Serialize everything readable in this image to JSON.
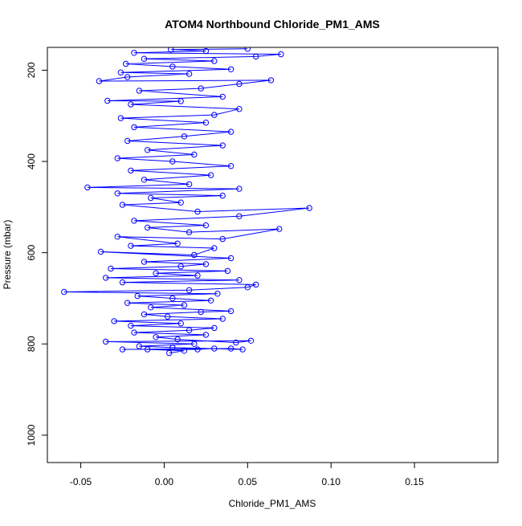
{
  "chart_data": {
    "type": "scatter",
    "title": "ATOM4 Northbound Chloride_PM1_AMS",
    "xlabel": "Chloride_PM1_AMS",
    "ylabel": "Pressure (mbar)",
    "xlim": [
      -0.07,
      0.2
    ],
    "ylim": [
      1060,
      150
    ],
    "y_reversed": true,
    "x_ticks": [
      -0.05,
      0.0,
      0.05,
      0.1,
      0.15
    ],
    "x_tick_labels": [
      "-0.05",
      "0.00",
      "0.05",
      "0.10",
      "0.15"
    ],
    "y_ticks": [
      200,
      400,
      600,
      800,
      1000
    ],
    "y_tick_labels": [
      "200",
      "400",
      "600",
      "800",
      "1000"
    ],
    "series": [
      {
        "color": "#0000ff",
        "marker": "open-circle",
        "line": true,
        "points": [
          [
            0.003,
            820
          ],
          [
            0.012,
            815
          ],
          [
            -0.01,
            812
          ],
          [
            0.02,
            812
          ],
          [
            0.03,
            810
          ],
          [
            -0.025,
            812
          ],
          [
            0.04,
            810
          ],
          [
            0.047,
            812
          ],
          [
            0.005,
            808
          ],
          [
            -0.015,
            805
          ],
          [
            0.018,
            800
          ],
          [
            -0.035,
            795
          ],
          [
            0.052,
            793
          ],
          [
            0.043,
            797
          ],
          [
            0.008,
            790
          ],
          [
            -0.005,
            785
          ],
          [
            0.025,
            780
          ],
          [
            -0.018,
            775
          ],
          [
            0.015,
            770
          ],
          [
            0.03,
            765
          ],
          [
            -0.02,
            760
          ],
          [
            0.01,
            755
          ],
          [
            -0.03,
            750
          ],
          [
            0.035,
            745
          ],
          [
            0.002,
            740
          ],
          [
            -0.012,
            735
          ],
          [
            0.022,
            730
          ],
          [
            0.04,
            728
          ],
          [
            -0.008,
            720
          ],
          [
            0.012,
            715
          ],
          [
            -0.022,
            710
          ],
          [
            0.028,
            705
          ],
          [
            0.005,
            700
          ],
          [
            -0.016,
            695
          ],
          [
            0.032,
            690
          ],
          [
            -0.06,
            686
          ],
          [
            0.015,
            682
          ],
          [
            0.05,
            676
          ],
          [
            0.055,
            670
          ],
          [
            -0.025,
            665
          ],
          [
            0.045,
            660
          ],
          [
            -0.035,
            655
          ],
          [
            0.02,
            650
          ],
          [
            -0.005,
            645
          ],
          [
            0.038,
            640
          ],
          [
            -0.032,
            635
          ],
          [
            0.01,
            630
          ],
          [
            0.025,
            625
          ],
          [
            -0.012,
            620
          ],
          [
            0.04,
            612
          ],
          [
            -0.038,
            598
          ],
          [
            0.018,
            605
          ],
          [
            0.03,
            590
          ],
          [
            -0.02,
            585
          ],
          [
            0.008,
            580
          ],
          [
            -0.028,
            565
          ],
          [
            0.035,
            570
          ],
          [
            0.069,
            548
          ],
          [
            0.015,
            555
          ],
          [
            -0.01,
            545
          ],
          [
            0.025,
            540
          ],
          [
            -0.018,
            530
          ],
          [
            0.045,
            520
          ],
          [
            0.087,
            502
          ],
          [
            0.02,
            510
          ],
          [
            -0.025,
            495
          ],
          [
            0.01,
            490
          ],
          [
            -0.008,
            480
          ],
          [
            0.035,
            475
          ],
          [
            -0.028,
            470
          ],
          [
            0.045,
            460
          ],
          [
            -0.046,
            457
          ],
          [
            0.015,
            450
          ],
          [
            -0.012,
            440
          ],
          [
            0.028,
            430
          ],
          [
            -0.02,
            420
          ],
          [
            0.04,
            410
          ],
          [
            0.005,
            400
          ],
          [
            -0.028,
            393
          ],
          [
            0.018,
            385
          ],
          [
            -0.01,
            375
          ],
          [
            0.035,
            365
          ],
          [
            -0.022,
            355
          ],
          [
            0.012,
            345
          ],
          [
            0.04,
            335
          ],
          [
            -0.018,
            325
          ],
          [
            0.025,
            315
          ],
          [
            -0.026,
            305
          ],
          [
            0.03,
            298
          ],
          [
            0.045,
            285
          ],
          [
            -0.02,
            275
          ],
          [
            0.01,
            268
          ],
          [
            -0.034,
            267
          ],
          [
            0.035,
            258
          ],
          [
            -0.015,
            245
          ],
          [
            0.022,
            240
          ],
          [
            0.045,
            230
          ],
          [
            0.064,
            222
          ],
          [
            -0.039,
            224
          ],
          [
            -0.022,
            215
          ],
          [
            0.015,
            208
          ],
          [
            -0.026,
            205
          ],
          [
            0.04,
            198
          ],
          [
            0.005,
            192
          ],
          [
            -0.023,
            186
          ],
          [
            0.03,
            180
          ],
          [
            -0.012,
            175
          ],
          [
            0.055,
            170
          ],
          [
            0.07,
            165
          ],
          [
            -0.018,
            162
          ],
          [
            0.025,
            158
          ],
          [
            0.004,
            155
          ],
          [
            0.05,
            153
          ]
        ]
      }
    ]
  }
}
